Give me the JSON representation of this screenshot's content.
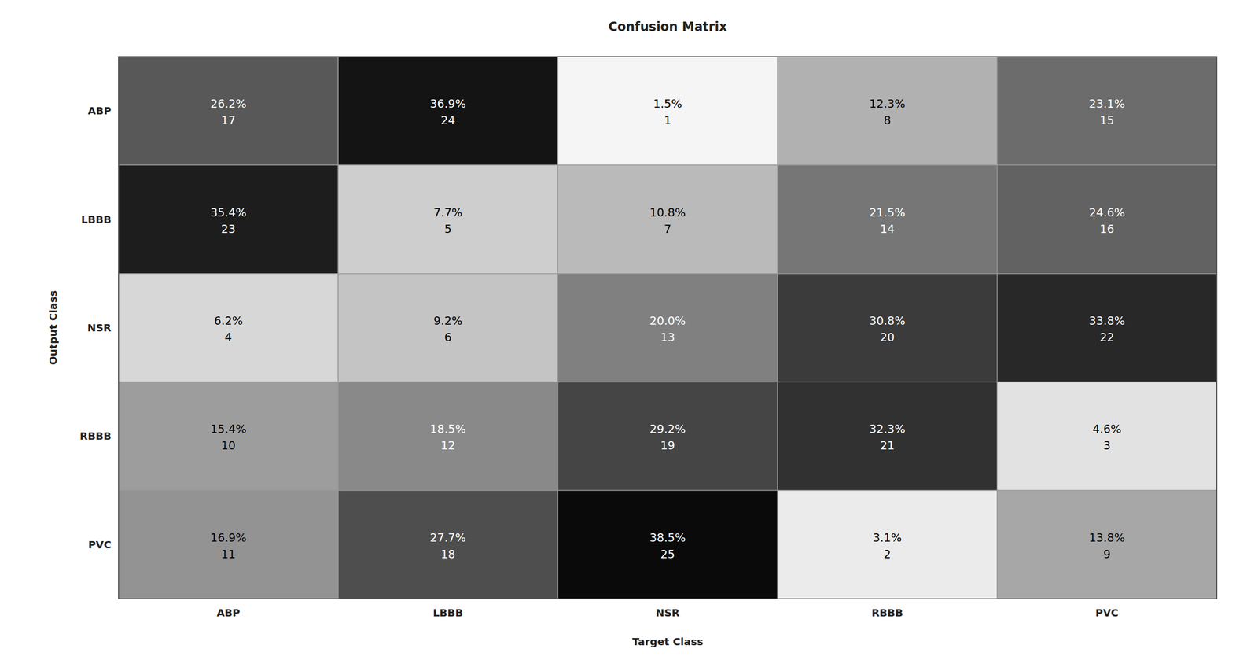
{
  "chart_data": {
    "type": "heatmap",
    "title": "Confusion Matrix",
    "x_label": "Target Class",
    "y_label": "Output Class",
    "x_categories": [
      "ABP",
      "LBBB",
      "NSR",
      "RBBB",
      "PVC"
    ],
    "y_categories": [
      "ABP",
      "LBBB",
      "NSR",
      "RBBB",
      "PVC"
    ],
    "values": [
      [
        26.2,
        36.9,
        1.5,
        12.3,
        23.1
      ],
      [
        35.4,
        7.7,
        10.8,
        21.5,
        24.6
      ],
      [
        6.2,
        9.2,
        20.0,
        30.8,
        33.8
      ],
      [
        15.4,
        18.5,
        29.2,
        32.3,
        4.6
      ],
      [
        16.9,
        27.7,
        38.5,
        3.1,
        13.8
      ]
    ],
    "value_labels": [
      [
        "26.2%",
        "36.9%",
        "1.5%",
        "12.3%",
        "23.1%"
      ],
      [
        "35.4%",
        "7.7%",
        "10.8%",
        "21.5%",
        "24.6%"
      ],
      [
        "6.2%",
        "9.2%",
        "20.0%",
        "30.8%",
        "33.8%"
      ],
      [
        "15.4%",
        "18.5%",
        "29.2%",
        "32.3%",
        "4.6%"
      ],
      [
        "16.9%",
        "27.7%",
        "38.5%",
        "3.1%",
        "13.8%"
      ]
    ],
    "counts": [
      [
        17,
        24,
        1,
        8,
        15
      ],
      [
        23,
        5,
        7,
        14,
        16
      ],
      [
        4,
        6,
        13,
        20,
        22
      ],
      [
        10,
        12,
        19,
        21,
        3
      ],
      [
        11,
        18,
        25,
        2,
        9
      ]
    ],
    "color_range": [
      0,
      40
    ],
    "data_labels": true
  }
}
